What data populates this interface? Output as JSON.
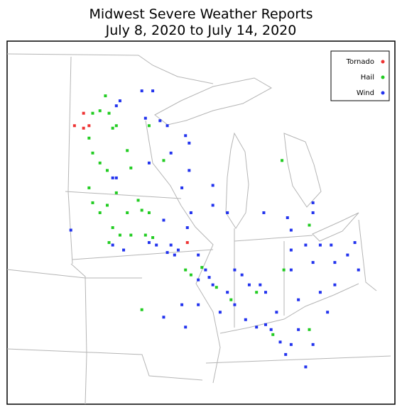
{
  "chart_data": {
    "type": "scatter",
    "title": "Midwest Severe Weather Reports",
    "subtitle": "July 8, 2020 to July 14, 2020",
    "xlim": [
      -100,
      -78.7
    ],
    "ylim": [
      34.9,
      49.5
    ],
    "legend": "upper right",
    "series": [
      {
        "name": "Tornado",
        "color": "#ee3333",
        "x": [
          -95.8,
          -96.3,
          -95.8,
          -95.5,
          -90.1
        ],
        "y": [
          46.6,
          46.1,
          46.0,
          46.1,
          41.4
        ]
      },
      {
        "name": "Hail",
        "color": "#22cc22",
        "x": [
          -94.6,
          -94.9,
          -94.4,
          -95.3,
          -94.0,
          -94.2,
          -95.5,
          -95.3,
          -94.9,
          -94.5,
          -95.5,
          -95.3,
          -94.9,
          -94.2,
          -93.8,
          -93.2,
          -92.6,
          -92.2,
          -92.4,
          -92.0,
          -90.2,
          -89.9,
          -89.3,
          -88.5,
          -87.7,
          -86.3,
          -84.8,
          -83.4,
          -83.4,
          -85.4,
          -92.6,
          -93.4,
          -93.2,
          -91.4,
          -92.2,
          -94.0,
          -94.5,
          -93.4,
          -92.8,
          -94.4,
          -84.9
        ],
        "y": [
          47.3,
          46.7,
          46.6,
          46.6,
          46.1,
          46.0,
          45.6,
          45.0,
          44.6,
          44.3,
          43.6,
          43.0,
          42.6,
          42.0,
          41.7,
          41.7,
          42.7,
          42.6,
          41.7,
          41.6,
          40.3,
          40.1,
          40.4,
          39.6,
          39.1,
          39.4,
          40.3,
          42.1,
          37.9,
          37.7,
          38.7,
          45.1,
          44.4,
          44.7,
          46.1,
          43.4,
          42.9,
          42.6,
          43.1,
          41.4,
          44.7
        ]
      },
      {
        "name": "Wind",
        "color": "#2233ee",
        "x": [
          -92.6,
          -92.0,
          -93.8,
          -92.4,
          -91.6,
          -91.2,
          -90.2,
          -90.0,
          -91.0,
          -94.2,
          -94.0,
          -92.2,
          -90.4,
          -90.0,
          -88.7,
          -88.7,
          -87.9,
          -89.9,
          -91.4,
          -91.0,
          -90.6,
          -91.2,
          -90.8,
          -89.5,
          -88.9,
          -89.1,
          -89.5,
          -88.7,
          -87.9,
          -87.5,
          -87.1,
          -86.7,
          -86.1,
          -85.8,
          -86.9,
          -86.3,
          -85.8,
          -85.2,
          -85.5,
          -85.0,
          -84.4,
          -84.0,
          -83.2,
          -84.7,
          -83.6,
          -90.2,
          -90.4,
          -89.5,
          -88.3,
          -91.4,
          -84.4,
          -83.6,
          -82.8,
          -82.2,
          -83.2,
          -82.0,
          -81.3,
          -80.9,
          -80.7,
          -82.0,
          -82.8,
          -84.0,
          -82.4,
          -84.4,
          -84.6,
          -83.2,
          -83.2,
          -85.9,
          -96.5,
          -94.2,
          -93.6,
          -92.2,
          -91.8,
          -94.0,
          -90.1,
          -87.5,
          -84.4
        ],
        "y": [
          47.5,
          47.5,
          47.1,
          46.4,
          46.3,
          46.1,
          45.7,
          45.4,
          45.0,
          44.0,
          44.0,
          44.6,
          43.6,
          44.3,
          43.7,
          42.9,
          42.6,
          42.6,
          42.3,
          41.3,
          41.1,
          41.0,
          40.9,
          40.9,
          40.0,
          40.3,
          39.9,
          39.7,
          39.4,
          38.9,
          40.1,
          39.7,
          39.7,
          39.4,
          38.3,
          38.0,
          38.1,
          38.6,
          37.9,
          37.4,
          37.3,
          37.9,
          37.3,
          36.9,
          36.4,
          38.0,
          38.9,
          38.9,
          38.6,
          38.4,
          41.1,
          41.3,
          41.3,
          41.3,
          40.6,
          40.6,
          40.9,
          41.4,
          40.3,
          39.7,
          39.4,
          39.1,
          38.6,
          41.9,
          42.4,
          43.0,
          42.6,
          42.6,
          41.9,
          41.3,
          41.1,
          41.4,
          41.3,
          46.9,
          42.0,
          40.3,
          40.3
        ]
      }
    ]
  }
}
